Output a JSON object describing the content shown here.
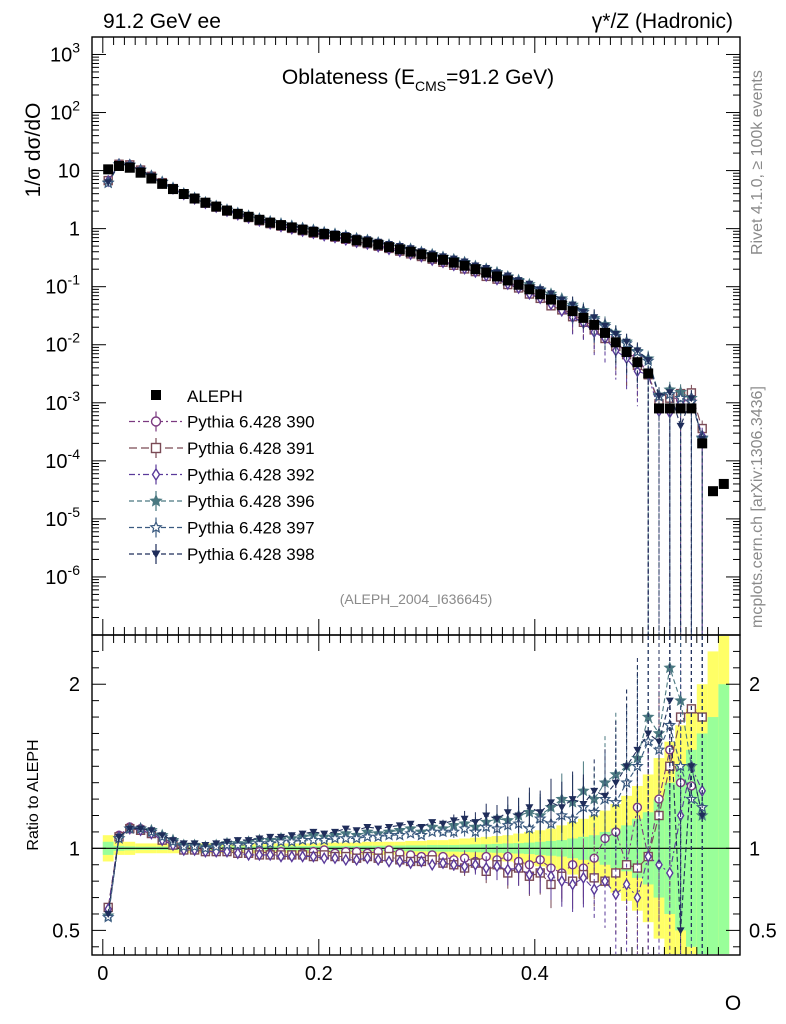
{
  "header": {
    "left": "91.2 GeV ee",
    "right": "γ*/Z (Hadronic)"
  },
  "side": {
    "rivet": "Rivet 4.1.0, ≥ 100k events",
    "mcplots": "mcplots.cern.ch [arXiv:1306.3436]"
  },
  "chart_data": {
    "type": "line",
    "title_main": "Oblateness (E",
    "title_sub": "CMS",
    "title_end": "=91.2 GeV)",
    "analysis_tag": "(ALEPH_2004_I636645)",
    "xlabel": "O",
    "ylabel_main": "1/σ  dσ/dO",
    "ylabel_ratio": "Ratio to ALEPH",
    "xlim": [
      -0.01,
      0.59
    ],
    "ylim_main": [
      1e-07,
      2000
    ],
    "ylim_ratio": [
      0.35,
      2.3
    ],
    "x_ticks": [
      "0",
      "0.2",
      "0.4"
    ],
    "y_ticks_main": [
      "10^3",
      "10^2",
      "10",
      "1",
      "10^-1",
      "10^-2",
      "10^-3",
      "10^-4",
      "10^-5",
      "10^-6"
    ],
    "y_ticks_ratio": [
      "0.5",
      "1",
      "2"
    ],
    "aleph": {
      "name": "ALEPH",
      "x": [
        0.005,
        0.015,
        0.025,
        0.035,
        0.045,
        0.055,
        0.065,
        0.075,
        0.085,
        0.095,
        0.105,
        0.115,
        0.125,
        0.135,
        0.145,
        0.155,
        0.165,
        0.175,
        0.185,
        0.195,
        0.205,
        0.215,
        0.225,
        0.235,
        0.245,
        0.255,
        0.265,
        0.275,
        0.285,
        0.295,
        0.305,
        0.315,
        0.325,
        0.335,
        0.345,
        0.355,
        0.365,
        0.375,
        0.385,
        0.395,
        0.405,
        0.415,
        0.425,
        0.435,
        0.445,
        0.455,
        0.465,
        0.475,
        0.485,
        0.495,
        0.505,
        0.515,
        0.525,
        0.535,
        0.545,
        0.555,
        0.565,
        0.575
      ],
      "y": [
        10.5,
        12.0,
        11.2,
        9.2,
        7.3,
        5.9,
        4.8,
        3.95,
        3.3,
        2.8,
        2.4,
        2.05,
        1.8,
        1.6,
        1.42,
        1.27,
        1.15,
        1.05,
        0.96,
        0.88,
        0.81,
        0.75,
        0.69,
        0.63,
        0.58,
        0.53,
        0.48,
        0.44,
        0.4,
        0.36,
        0.32,
        0.29,
        0.26,
        0.23,
        0.2,
        0.175,
        0.15,
        0.128,
        0.108,
        0.09,
        0.074,
        0.06,
        0.048,
        0.038,
        0.029,
        0.022,
        0.016,
        0.011,
        0.0075,
        0.005,
        0.0032,
        0.0008,
        0.0008,
        0.0008,
        0.0008,
        0.0002,
        3e-05,
        4e-05
      ]
    },
    "series": [
      {
        "name": "Pythia 6.428 390",
        "color": "#7b3a80",
        "marker": "circle-open",
        "dash": "6,3,2,3",
        "ratio": [
          0.63,
          1.08,
          1.13,
          1.12,
          1.1,
          1.06,
          1.03,
          1.0,
          1.0,
          0.99,
          0.98,
          0.99,
          0.98,
          0.97,
          0.98,
          0.97,
          0.98,
          0.96,
          0.97,
          0.98,
          0.99,
          0.97,
          0.98,
          0.98,
          0.97,
          0.98,
          0.99,
          0.97,
          0.96,
          0.95,
          0.96,
          0.95,
          0.93,
          0.94,
          0.92,
          0.95,
          0.93,
          0.95,
          0.92,
          0.9,
          0.93,
          0.88,
          0.85,
          0.9,
          0.88,
          0.94,
          1.06,
          1.1,
          0.9,
          1.25,
          0.95,
          1.3,
          1.6,
          1.4,
          1.38
        ]
      },
      {
        "name": "Pythia 6.428 391",
        "color": "#7a4a55",
        "marker": "square-open",
        "dash": "8,4",
        "ratio": [
          0.64,
          1.07,
          1.12,
          1.11,
          1.09,
          1.05,
          1.02,
          0.99,
          0.99,
          0.98,
          0.98,
          0.98,
          0.97,
          0.97,
          0.96,
          0.96,
          0.96,
          0.96,
          0.96,
          0.95,
          0.96,
          0.95,
          0.95,
          0.94,
          0.95,
          0.94,
          0.95,
          0.93,
          0.92,
          0.92,
          0.93,
          0.91,
          0.9,
          0.88,
          0.91,
          0.86,
          0.9,
          0.85,
          0.88,
          0.83,
          0.85,
          0.78,
          0.83,
          0.8,
          0.84,
          0.82,
          0.8,
          0.85,
          0.9,
          0.88,
          0.95,
          1.2,
          1.5,
          1.8,
          1.85,
          1.8
        ]
      },
      {
        "name": "Pythia 6.428 392",
        "color": "#5a3a9a",
        "marker": "diamond-open",
        "dash": "6,3,2,3",
        "ratio": [
          0.63,
          1.07,
          1.12,
          1.11,
          1.09,
          1.05,
          1.02,
          0.99,
          0.99,
          0.98,
          0.98,
          0.98,
          0.97,
          0.96,
          0.96,
          0.96,
          0.95,
          0.95,
          0.95,
          0.95,
          0.94,
          0.94,
          0.93,
          0.93,
          0.94,
          0.93,
          0.92,
          0.92,
          0.91,
          0.92,
          0.9,
          0.91,
          0.9,
          0.89,
          0.9,
          0.88,
          0.89,
          0.87,
          0.88,
          0.84,
          0.86,
          0.83,
          0.8,
          0.78,
          0.82,
          0.75,
          0.8,
          0.72,
          0.78,
          0.7,
          0.95,
          0.9,
          0.85,
          1.2,
          1.5,
          1.35
        ]
      },
      {
        "name": "Pythia 6.428 396",
        "color": "#4a7880",
        "marker": "star-filled",
        "dash": "5,3",
        "ratio": [
          0.59,
          1.06,
          1.12,
          1.12,
          1.11,
          1.08,
          1.05,
          1.02,
          1.02,
          1.01,
          1.02,
          1.03,
          1.03,
          1.04,
          1.05,
          1.05,
          1.06,
          1.06,
          1.07,
          1.08,
          1.07,
          1.08,
          1.09,
          1.08,
          1.1,
          1.09,
          1.1,
          1.11,
          1.12,
          1.1,
          1.13,
          1.12,
          1.14,
          1.15,
          1.13,
          1.16,
          1.18,
          1.17,
          1.2,
          1.22,
          1.2,
          1.25,
          1.3,
          1.28,
          1.35,
          1.3,
          1.4,
          1.45,
          1.5,
          1.55,
          1.8,
          1.7,
          2.1,
          1.9,
          1.5,
          1.2
        ]
      },
      {
        "name": "Pythia 6.428 397",
        "color": "#3a5a80",
        "marker": "star-open",
        "dash": "5,3",
        "ratio": [
          0.58,
          1.06,
          1.12,
          1.12,
          1.1,
          1.07,
          1.04,
          1.01,
          1.01,
          1.0,
          1.01,
          1.02,
          1.02,
          1.02,
          1.03,
          1.03,
          1.04,
          1.04,
          1.05,
          1.05,
          1.05,
          1.06,
          1.06,
          1.06,
          1.07,
          1.07,
          1.08,
          1.08,
          1.09,
          1.08,
          1.1,
          1.1,
          1.1,
          1.12,
          1.1,
          1.13,
          1.12,
          1.14,
          1.15,
          1.12,
          1.18,
          1.15,
          1.2,
          1.18,
          1.25,
          1.22,
          1.3,
          1.28,
          1.4,
          1.5,
          1.65,
          1.6,
          1.75,
          1.5,
          1.3,
          1.25
        ]
      },
      {
        "name": "Pythia 6.428 398",
        "color": "#1f2d5a",
        "marker": "triangle-down-filled",
        "dash": "5,3",
        "ratio": [
          0.6,
          1.07,
          1.12,
          1.12,
          1.11,
          1.08,
          1.05,
          1.03,
          1.03,
          1.02,
          1.03,
          1.04,
          1.05,
          1.05,
          1.06,
          1.07,
          1.07,
          1.08,
          1.09,
          1.1,
          1.09,
          1.1,
          1.12,
          1.11,
          1.13,
          1.12,
          1.13,
          1.14,
          1.15,
          1.13,
          1.16,
          1.15,
          1.17,
          1.18,
          1.16,
          1.2,
          1.18,
          1.22,
          1.2,
          1.25,
          1.22,
          1.28,
          1.25,
          1.3,
          1.27,
          1.35,
          1.32,
          1.4,
          1.5,
          1.6,
          1.7,
          1.65,
          1.9,
          0.5,
          1.5,
          1.2
        ]
      }
    ],
    "uncertainty_bands": {
      "stat_color": "#99ff99",
      "total_color": "#ffff66",
      "stat_half": [
        0.04,
        0.015,
        0.012,
        0.01,
        0.01,
        0.01,
        0.01,
        0.01,
        0.01,
        0.01,
        0.012,
        0.012,
        0.012,
        0.012,
        0.012,
        0.013,
        0.013,
        0.013,
        0.014,
        0.014,
        0.014,
        0.015,
        0.015,
        0.015,
        0.016,
        0.016,
        0.016,
        0.017,
        0.018,
        0.018,
        0.02,
        0.02,
        0.02,
        0.022,
        0.024,
        0.025,
        0.027,
        0.03,
        0.032,
        0.035,
        0.04,
        0.045,
        0.05,
        0.06,
        0.07,
        0.08,
        0.1,
        0.12,
        0.14,
        0.18,
        0.22,
        0.3,
        0.4,
        0.5,
        0.6,
        0.7,
        0.8,
        1.0
      ],
      "total_half": [
        0.08,
        0.04,
        0.04,
        0.03,
        0.03,
        0.03,
        0.03,
        0.03,
        0.03,
        0.03,
        0.03,
        0.03,
        0.03,
        0.03,
        0.03,
        0.03,
        0.03,
        0.03,
        0.03,
        0.03,
        0.035,
        0.035,
        0.035,
        0.035,
        0.04,
        0.04,
        0.04,
        0.04,
        0.045,
        0.045,
        0.05,
        0.05,
        0.055,
        0.06,
        0.065,
        0.07,
        0.075,
        0.08,
        0.09,
        0.1,
        0.11,
        0.12,
        0.14,
        0.16,
        0.18,
        0.2,
        0.23,
        0.27,
        0.32,
        0.38,
        0.45,
        0.55,
        0.65,
        0.75,
        0.85,
        1.0,
        1.2,
        1.5
      ]
    }
  }
}
